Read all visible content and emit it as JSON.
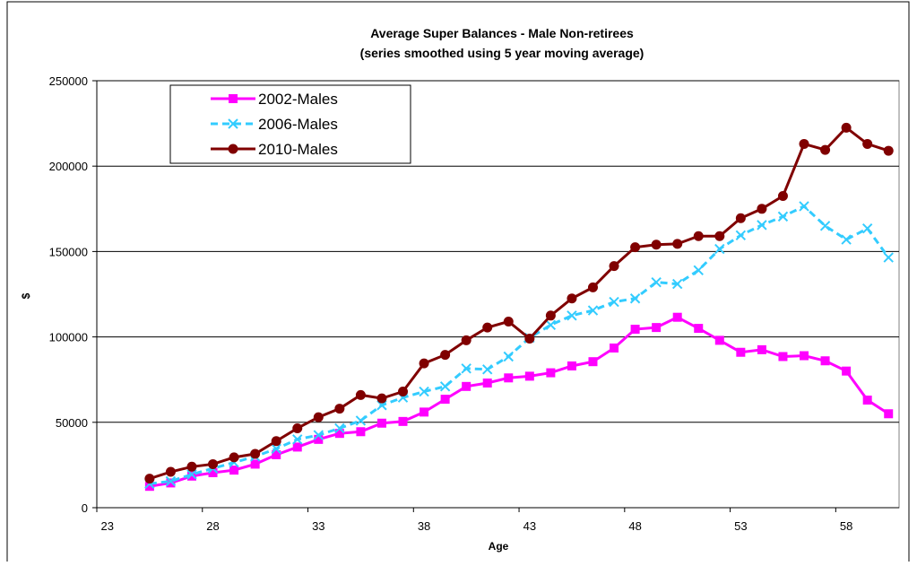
{
  "chart_data": {
    "type": "line",
    "title": "Average Super Balances - Male Non-retirees",
    "subtitle": "(series smoothed using 5 year moving average)",
    "x_label": "Age",
    "y_label": "$",
    "categories": [
      23,
      null,
      null,
      null,
      null,
      28,
      null,
      null,
      null,
      null,
      33,
      null,
      null,
      null,
      null,
      38,
      null,
      null,
      null,
      null,
      43,
      null,
      null,
      null,
      null,
      48,
      null,
      null,
      null,
      null,
      53,
      null,
      null,
      null,
      null,
      58,
      null,
      null
    ],
    "ylim": [
      0,
      250000
    ],
    "yticks": [
      0,
      50000,
      100000,
      150000,
      200000,
      250000
    ],
    "grid": true,
    "legend": "top-left",
    "series": [
      {
        "name": "2002-Males",
        "color": "#ff00ff",
        "marker": "square",
        "dash": false,
        "values": [
          null,
          null,
          12500,
          14500,
          18500,
          20500,
          22000,
          25500,
          31000,
          35500,
          40000,
          43500,
          44500,
          49500,
          50500,
          56000,
          63500,
          71000,
          73000,
          76000,
          77000,
          79000,
          83000,
          85500,
          93500,
          104500,
          105500,
          111500,
          105000,
          98000,
          91000,
          92500,
          88500,
          89000,
          86000,
          80000,
          63000,
          55000
        ]
      },
      {
        "name": "2006-Males",
        "color": "#33ccff",
        "marker": "x",
        "dash": true,
        "values": [
          null,
          null,
          14000,
          15500,
          19500,
          23000,
          26500,
          30000,
          34500,
          40000,
          42500,
          46500,
          51000,
          60000,
          64500,
          68000,
          71000,
          81500,
          81000,
          88500,
          99500,
          107000,
          112500,
          115500,
          120500,
          122500,
          132000,
          131000,
          139000,
          151500,
          159500,
          165500,
          170500,
          176500,
          165000,
          157000,
          163500,
          146500
        ]
      },
      {
        "name": "2010-Males",
        "color": "#800000",
        "marker": "circle",
        "dash": false,
        "values": [
          null,
          null,
          17000,
          21000,
          24000,
          25500,
          29500,
          31500,
          39000,
          46500,
          53000,
          58000,
          66000,
          64000,
          68000,
          84500,
          89500,
          98000,
          105500,
          109000,
          99000,
          112500,
          122500,
          129000,
          141500,
          152500,
          154000,
          154500,
          159000,
          159000,
          169500,
          175000,
          182500,
          213000,
          209500,
          222500,
          213000,
          209000
        ]
      }
    ]
  }
}
